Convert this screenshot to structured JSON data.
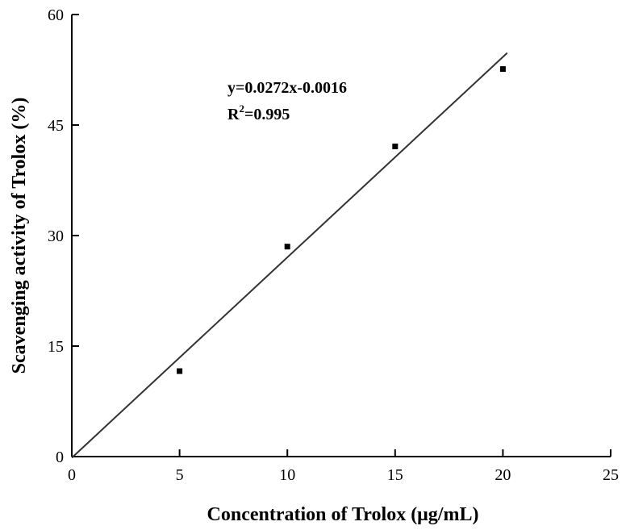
{
  "chart_data": {
    "type": "scatter",
    "xlabel": "Concentration of Trolox (μg/mL)",
    "ylabel": "Scavenging activity of Trolox (%)",
    "xlim": [
      0,
      25
    ],
    "ylim": [
      0,
      60
    ],
    "xticks": [
      "0",
      "5",
      "10",
      "15",
      "20",
      "25"
    ],
    "yticks": [
      "0",
      "15",
      "30",
      "45",
      "60"
    ],
    "grid": false,
    "points": [
      {
        "x": 5,
        "y": 11.6
      },
      {
        "x": 10,
        "y": 28.5
      },
      {
        "x": 15,
        "y": 42.1
      },
      {
        "x": 20,
        "y": 52.6
      }
    ],
    "fit_line": {
      "slope": 2.72,
      "intercept": -0.16,
      "x_range": [
        0,
        20.2
      ]
    },
    "annotations": {
      "equation": "y=0.0272x-0.0016",
      "r2_prefix": "R",
      "r2_sup": "2",
      "r2_value": "=0.995"
    }
  }
}
